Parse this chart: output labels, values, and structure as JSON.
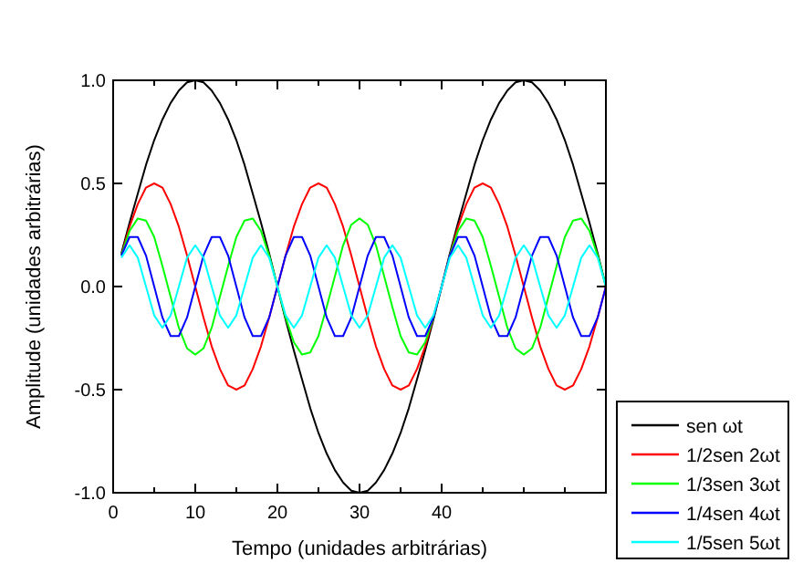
{
  "chart_data": {
    "type": "line",
    "xlabel": "Tempo (unidades arbitrárias)",
    "ylabel": "Amplitude (unidades arbitrárias)",
    "x": [
      1,
      2,
      3,
      4,
      5,
      6,
      7,
      8,
      9,
      10,
      11,
      12,
      13,
      14,
      15,
      16,
      17,
      18,
      19,
      20,
      21,
      22,
      23,
      24,
      25,
      26,
      27,
      28,
      29,
      30,
      31,
      32,
      33,
      34,
      35,
      36,
      37,
      38,
      39,
      40,
      41,
      42,
      43,
      44,
      45,
      46,
      47,
      48,
      49,
      50,
      51,
      52,
      53,
      54,
      55,
      56,
      57,
      58,
      59,
      60
    ],
    "series": [
      {
        "name": "sen ωt",
        "color": "#000000",
        "values": [
          0.16,
          0.31,
          0.45,
          0.59,
          0.71,
          0.81,
          0.89,
          0.95,
          0.99,
          1,
          0.99,
          0.95,
          0.89,
          0.81,
          0.71,
          0.59,
          0.45,
          0.31,
          0.16,
          0,
          -0.16,
          -0.31,
          -0.45,
          -0.59,
          -0.71,
          -0.81,
          -0.89,
          -0.95,
          -0.99,
          -1,
          -0.99,
          -0.95,
          -0.89,
          -0.81,
          -0.71,
          -0.59,
          -0.45,
          -0.31,
          -0.16,
          0,
          0.16,
          0.31,
          0.45,
          0.59,
          0.71,
          0.81,
          0.89,
          0.95,
          0.99,
          1,
          0.99,
          0.95,
          0.89,
          0.81,
          0.71,
          0.59,
          0.45,
          0.31,
          0.16,
          0
        ]
      },
      {
        "name": "1/2sen 2ωt",
        "color": "#ff0000",
        "values": [
          0.15,
          0.29,
          0.4,
          0.48,
          0.5,
          0.48,
          0.4,
          0.29,
          0.15,
          0,
          -0.15,
          -0.29,
          -0.4,
          -0.48,
          -0.5,
          -0.48,
          -0.4,
          -0.29,
          -0.15,
          0,
          0.15,
          0.29,
          0.4,
          0.48,
          0.5,
          0.48,
          0.4,
          0.29,
          0.15,
          0,
          -0.15,
          -0.29,
          -0.4,
          -0.48,
          -0.5,
          -0.48,
          -0.4,
          -0.29,
          -0.15,
          0,
          0.15,
          0.29,
          0.4,
          0.48,
          0.5,
          0.48,
          0.4,
          0.29,
          0.15,
          0,
          -0.15,
          -0.29,
          -0.4,
          -0.48,
          -0.5,
          -0.48,
          -0.4,
          -0.29,
          -0.15,
          0
        ]
      },
      {
        "name": "1/3sen 3ωt",
        "color": "#00ff00",
        "values": [
          0.15,
          0.27,
          0.33,
          0.32,
          0.24,
          0.1,
          -0.05,
          -0.2,
          -0.3,
          -0.33,
          -0.3,
          -0.2,
          -0.05,
          0.1,
          0.24,
          0.32,
          0.33,
          0.27,
          0.15,
          0,
          -0.15,
          -0.27,
          -0.33,
          -0.32,
          -0.24,
          -0.1,
          0.05,
          0.2,
          0.3,
          0.33,
          0.3,
          0.2,
          0.05,
          -0.1,
          -0.24,
          -0.32,
          -0.33,
          -0.27,
          -0.15,
          0,
          0.15,
          0.27,
          0.33,
          0.32,
          0.24,
          0.1,
          -0.05,
          -0.2,
          -0.3,
          -0.33,
          -0.3,
          -0.2,
          -0.05,
          0.1,
          0.24,
          0.32,
          0.33,
          0.27,
          0.15,
          0
        ]
      },
      {
        "name": "1/4sen 4ωt",
        "color": "#0000ff",
        "values": [
          0.15,
          0.24,
          0.24,
          0.15,
          0,
          -0.15,
          -0.24,
          -0.24,
          -0.15,
          0,
          0.15,
          0.24,
          0.24,
          0.15,
          0,
          -0.15,
          -0.24,
          -0.24,
          -0.15,
          0,
          0.15,
          0.24,
          0.24,
          0.15,
          0,
          -0.15,
          -0.24,
          -0.24,
          -0.15,
          0,
          0.15,
          0.24,
          0.24,
          0.15,
          0,
          -0.15,
          -0.24,
          -0.24,
          -0.15,
          0,
          0.15,
          0.24,
          0.24,
          0.15,
          0,
          -0.15,
          -0.24,
          -0.24,
          -0.15,
          0,
          0.15,
          0.24,
          0.24,
          0.15,
          0,
          -0.15,
          -0.24,
          -0.24,
          -0.15,
          0
        ]
      },
      {
        "name": "1/5sen 5ωt",
        "color": "#00ffff",
        "values": [
          0.14,
          0.2,
          0.14,
          0,
          -0.14,
          -0.2,
          -0.14,
          0,
          0.14,
          0.2,
          0.14,
          0,
          -0.14,
          -0.2,
          -0.14,
          0,
          0.14,
          0.2,
          0.14,
          0,
          -0.14,
          -0.2,
          -0.14,
          0,
          0.14,
          0.2,
          0.14,
          0,
          -0.14,
          -0.2,
          -0.14,
          0,
          0.14,
          0.2,
          0.14,
          0,
          -0.14,
          -0.2,
          -0.14,
          0,
          0.14,
          0.2,
          0.14,
          0,
          -0.14,
          -0.2,
          -0.14,
          0,
          0.14,
          0.2,
          0.14,
          0,
          -0.14,
          -0.2,
          -0.14,
          0,
          0.14,
          0.2,
          0.14,
          0
        ]
      }
    ],
    "xlim": [
      0,
      60
    ],
    "xticks": [
      0,
      {
        "value": 5,
        "label": null
      },
      10,
      {
        "value": 15,
        "label": null
      },
      20,
      {
        "value": 25,
        "label": null
      },
      30,
      {
        "value": 35,
        "label": null
      },
      40,
      {
        "value": 45,
        "label": null
      },
      {
        "value": 50,
        "label": null
      },
      {
        "value": 55,
        "label": null
      }
    ],
    "ylim": [
      -1,
      1
    ],
    "yticks": [
      {
        "value": -1,
        "label": "-1.0"
      },
      {
        "value": -0.5,
        "label": "-0.5"
      },
      {
        "value": 0,
        "label": "0.0"
      },
      {
        "value": 0.5,
        "label": "0.5"
      },
      {
        "value": 1,
        "label": "1.0"
      }
    ],
    "grid": false,
    "legend": "bottom right",
    "marker": "none",
    "line_style": "solid"
  }
}
